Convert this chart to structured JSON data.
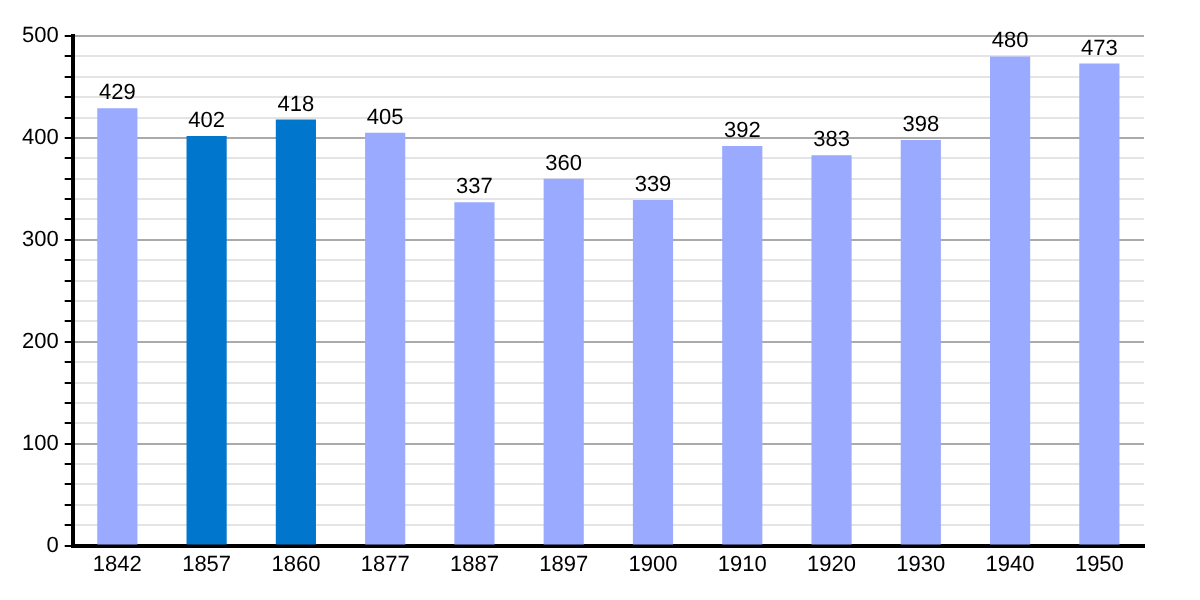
{
  "chart_data": {
    "type": "bar",
    "categories": [
      "1842",
      "1857",
      "1860",
      "1877",
      "1887",
      "1897",
      "1900",
      "1910",
      "1920",
      "1930",
      "1940",
      "1950"
    ],
    "values": [
      429,
      402,
      418,
      405,
      337,
      360,
      339,
      392,
      383,
      398,
      480,
      473
    ],
    "colors": [
      "#99aaff",
      "#0077cc",
      "#0077cc",
      "#99aaff",
      "#99aaff",
      "#99aaff",
      "#99aaff",
      "#99aaff",
      "#99aaff",
      "#99aaff",
      "#99aaff",
      "#99aaff"
    ],
    "ylim": [
      0,
      500
    ],
    "yticks": [
      0,
      {
        "value": 20,
        "label": null
      },
      {
        "value": 40,
        "label": null
      },
      {
        "value": 60,
        "label": null
      },
      {
        "value": 80,
        "label": null
      },
      100,
      {
        "value": 120,
        "label": null
      },
      {
        "value": 140,
        "label": null
      },
      {
        "value": 160,
        "label": null
      },
      {
        "value": 180,
        "label": null
      },
      200,
      {
        "value": 220,
        "label": null
      },
      {
        "value": 240,
        "label": null
      },
      {
        "value": 260,
        "label": null
      },
      {
        "value": 280,
        "label": null
      },
      300,
      {
        "value": 320,
        "label": null
      },
      {
        "value": 340,
        "label": null
      },
      {
        "value": 360,
        "label": null
      },
      {
        "value": 380,
        "label": null
      },
      400,
      {
        "value": 420,
        "label": null
      },
      {
        "value": 440,
        "label": null
      },
      {
        "value": 460,
        "label": null
      },
      {
        "value": 480,
        "label": null
      },
      500
    ],
    "grid": "y",
    "data_labels": true,
    "legend": false
  }
}
